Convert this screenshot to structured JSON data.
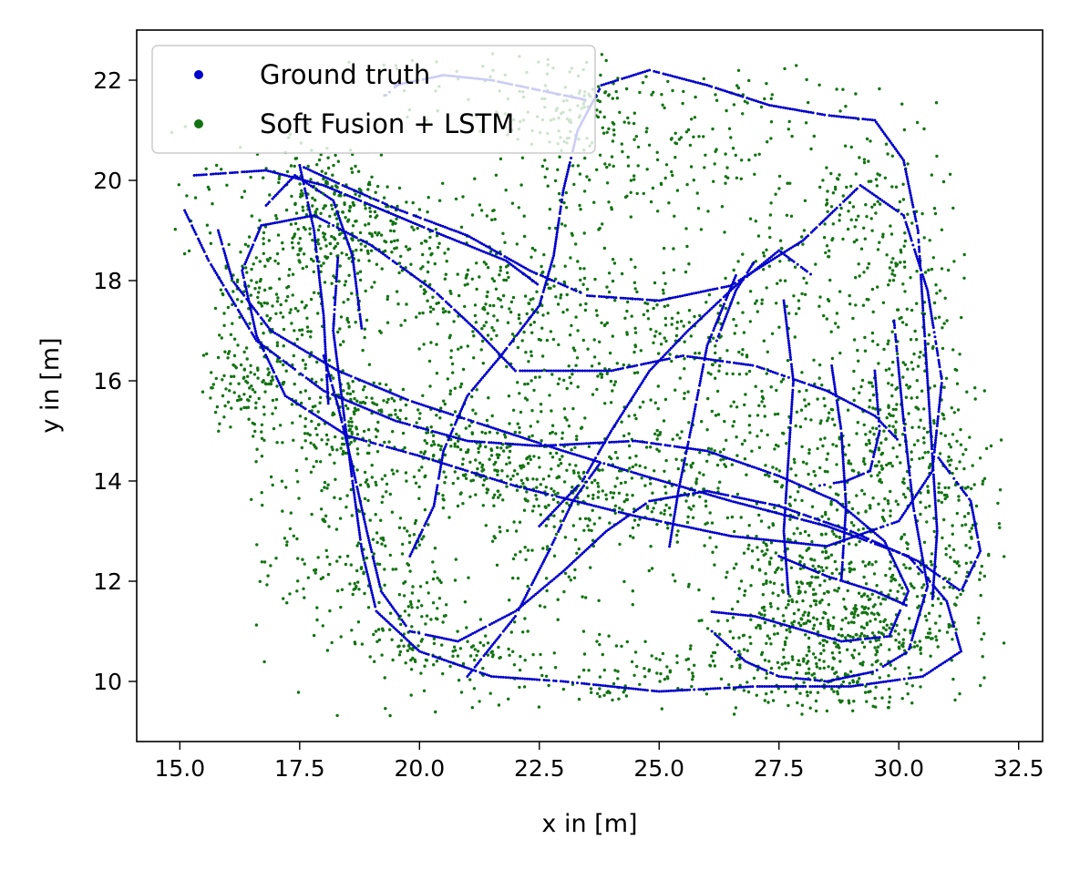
{
  "chart_data": {
    "type": "scatter",
    "title": "",
    "xlabel": "x in [m]",
    "ylabel": "y in [m]",
    "xlim": [
      14.1,
      33.0
    ],
    "ylim": [
      8.8,
      23.0
    ],
    "xticks": [
      15.0,
      17.5,
      20.0,
      22.5,
      25.0,
      27.5,
      30.0,
      32.5
    ],
    "xtick_labels": [
      "15.0",
      "17.5",
      "20.0",
      "22.5",
      "25.0",
      "27.5",
      "30.0",
      "32.5"
    ],
    "yticks": [
      10,
      12,
      14,
      16,
      18,
      20,
      22
    ],
    "ytick_labels": [
      "10",
      "12",
      "14",
      "16",
      "18",
      "20",
      "22"
    ],
    "grid": false,
    "legend": "top-left",
    "series": [
      {
        "name": "Ground truth",
        "color": "#0000cc",
        "polylines": [
          [
            [
              17.5,
              20.3
            ],
            [
              18.4,
              19.9
            ],
            [
              19.6,
              19.4
            ],
            [
              21.0,
              18.9
            ],
            [
              22.3,
              18.2
            ],
            [
              23.5,
              17.7
            ],
            [
              25.0,
              17.6
            ],
            [
              26.5,
              17.9
            ],
            [
              28.0,
              18.8
            ],
            [
              29.2,
              19.9
            ],
            [
              30.1,
              19.3
            ],
            [
              30.6,
              17.8
            ],
            [
              30.9,
              16.0
            ],
            [
              30.7,
              14.2
            ],
            [
              30.0,
              13.2
            ],
            [
              28.5,
              12.7
            ],
            [
              26.5,
              12.9
            ],
            [
              24.5,
              13.3
            ],
            [
              22.0,
              13.9
            ],
            [
              20.0,
              14.5
            ],
            [
              18.5,
              14.9
            ],
            [
              17.2,
              15.7
            ],
            [
              16.6,
              16.9
            ],
            [
              16.3,
              18.2
            ],
            [
              16.7,
              19.1
            ],
            [
              17.8,
              19.3
            ],
            [
              19.0,
              18.7
            ],
            [
              20.3,
              17.8
            ],
            [
              21.2,
              17.0
            ],
            [
              22.0,
              16.2
            ],
            [
              24.0,
              16.2
            ],
            [
              25.5,
              16.5
            ],
            [
              27.0,
              16.3
            ],
            [
              28.5,
              15.8
            ],
            [
              29.5,
              15.3
            ],
            [
              30.0,
              14.8
            ]
          ],
          [
            [
              15.3,
              20.1
            ],
            [
              16.8,
              20.2
            ],
            [
              18.0,
              19.9
            ],
            [
              19.5,
              19.3
            ],
            [
              20.5,
              18.9
            ],
            [
              21.8,
              18.4
            ],
            [
              22.5,
              17.9
            ]
          ],
          [
            [
              15.1,
              19.4
            ],
            [
              15.6,
              18.4
            ],
            [
              16.6,
              16.8
            ],
            [
              18.0,
              15.8
            ],
            [
              19.5,
              15.2
            ],
            [
              21.0,
              14.8
            ],
            [
              22.5,
              14.7
            ],
            [
              24.5,
              14.8
            ],
            [
              26.0,
              14.6
            ],
            [
              27.5,
              14.1
            ],
            [
              28.7,
              13.6
            ],
            [
              29.7,
              12.8
            ],
            [
              30.2,
              11.8
            ],
            [
              29.8,
              10.9
            ],
            [
              28.8,
              10.8
            ],
            [
              27.0,
              11.3
            ],
            [
              26.0,
              11.4
            ]
          ],
          [
            [
              15.8,
              19.0
            ],
            [
              16.1,
              18.0
            ],
            [
              16.9,
              17.0
            ],
            [
              18.3,
              16.2
            ],
            [
              19.8,
              15.6
            ],
            [
              21.4,
              15.1
            ],
            [
              23.0,
              14.6
            ],
            [
              24.7,
              14.1
            ],
            [
              26.5,
              13.6
            ],
            [
              28.5,
              13.1
            ],
            [
              30.2,
              12.5
            ],
            [
              31.0,
              11.6
            ],
            [
              31.3,
              10.6
            ],
            [
              30.5,
              10.1
            ],
            [
              29.0,
              9.9
            ],
            [
              27.0,
              9.9
            ],
            [
              25.0,
              9.8
            ],
            [
              23.0,
              10.0
            ],
            [
              21.5,
              10.1
            ],
            [
              20.0,
              10.6
            ],
            [
              19.1,
              11.4
            ],
            [
              18.8,
              12.6
            ],
            [
              18.6,
              14.0
            ],
            [
              18.4,
              15.5
            ],
            [
              18.2,
              17.0
            ],
            [
              18.3,
              18.5
            ]
          ],
          [
            [
              16.8,
              19.5
            ],
            [
              17.4,
              20.1
            ],
            [
              18.2,
              19.6
            ],
            [
              18.6,
              18.5
            ],
            [
              18.8,
              17.0
            ]
          ],
          [
            [
              17.5,
              20.3
            ],
            [
              17.8,
              19.0
            ],
            [
              18.0,
              17.3
            ],
            [
              18.1,
              15.5
            ]
          ],
          [
            [
              18.0,
              16.5
            ],
            [
              18.3,
              15.5
            ],
            [
              18.6,
              14.3
            ],
            [
              18.9,
              13.0
            ],
            [
              19.2,
              11.8
            ],
            [
              19.8,
              11.0
            ],
            [
              20.8,
              10.8
            ],
            [
              22.0,
              11.4
            ],
            [
              23.0,
              12.2
            ],
            [
              23.9,
              13.0
            ],
            [
              24.8,
              13.6
            ],
            [
              26.0,
              13.8
            ],
            [
              27.5,
              13.5
            ],
            [
              29.0,
              13.0
            ],
            [
              30.4,
              12.4
            ],
            [
              31.3,
              11.8
            ],
            [
              31.7,
              12.6
            ],
            [
              31.5,
              13.6
            ],
            [
              30.8,
              14.5
            ]
          ],
          [
            [
              19.8,
              12.5
            ],
            [
              20.3,
              13.5
            ],
            [
              20.5,
              14.6
            ],
            [
              21.0,
              15.7
            ],
            [
              21.7,
              16.5
            ],
            [
              22.5,
              17.5
            ],
            [
              22.8,
              18.5
            ],
            [
              23.0,
              19.8
            ],
            [
              23.3,
              21.0
            ],
            [
              23.8,
              21.9
            ],
            [
              24.8,
              22.2
            ],
            [
              26.0,
              21.9
            ],
            [
              27.3,
              21.5
            ],
            [
              28.5,
              21.3
            ],
            [
              29.5,
              21.2
            ],
            [
              30.1,
              20.4
            ],
            [
              30.4,
              19.0
            ],
            [
              30.5,
              17.5
            ],
            [
              30.6,
              16.0
            ],
            [
              30.7,
              14.5
            ],
            [
              30.8,
              13.0
            ],
            [
              30.7,
              11.6
            ]
          ],
          [
            [
              19.5,
              21.9
            ],
            [
              20.5,
              22.1
            ],
            [
              21.5,
              22.0
            ],
            [
              22.5,
              21.8
            ],
            [
              23.5,
              21.6
            ]
          ],
          [
            [
              22.5,
              13.1
            ],
            [
              23.4,
              14.0
            ],
            [
              24.0,
              15.0
            ],
            [
              24.8,
              16.2
            ],
            [
              25.6,
              17.0
            ],
            [
              26.6,
              17.9
            ],
            [
              27.5,
              18.6
            ],
            [
              28.2,
              18.1
            ]
          ],
          [
            [
              21.0,
              10.1
            ],
            [
              22.0,
              11.3
            ],
            [
              22.7,
              12.6
            ],
            [
              23.2,
              13.6
            ],
            [
              23.8,
              14.4
            ]
          ],
          [
            [
              26.2,
              16.8
            ],
            [
              26.6,
              17.8
            ],
            [
              27.0,
              18.4
            ]
          ],
          [
            [
              26.6,
              18.1
            ],
            [
              26.0,
              16.7
            ],
            [
              25.7,
              15.2
            ],
            [
              25.4,
              13.8
            ],
            [
              25.2,
              12.6
            ]
          ],
          [
            [
              27.6,
              17.6
            ],
            [
              27.8,
              16.0
            ],
            [
              27.7,
              14.5
            ],
            [
              27.6,
              13.0
            ],
            [
              27.7,
              11.7
            ]
          ],
          [
            [
              28.6,
              16.3
            ],
            [
              28.8,
              15.0
            ],
            [
              28.9,
              13.5
            ],
            [
              28.8,
              12.0
            ]
          ],
          [
            [
              29.5,
              16.2
            ],
            [
              29.6,
              15.0
            ],
            [
              29.4,
              14.2
            ],
            [
              28.9,
              14.0
            ],
            [
              28.3,
              13.9
            ]
          ],
          [
            [
              29.9,
              17.2
            ],
            [
              30.1,
              15.2
            ],
            [
              30.3,
              13.5
            ],
            [
              30.6,
              11.9
            ],
            [
              30.2,
              10.6
            ]
          ],
          [
            [
              26.1,
              11.0
            ],
            [
              26.8,
              10.4
            ],
            [
              27.5,
              10.1
            ],
            [
              28.5,
              10.0
            ],
            [
              29.5,
              10.2
            ],
            [
              30.2,
              10.6
            ]
          ],
          [
            [
              27.5,
              12.5
            ],
            [
              28.5,
              12.1
            ],
            [
              29.5,
              11.8
            ],
            [
              30.2,
              11.5
            ]
          ],
          [
            [
              19.3,
              21.7
            ],
            [
              19.6,
              21.95
            ]
          ],
          [
            [
              25.7,
              11.6
            ],
            [
              25.75,
              11.65
            ]
          ]
        ]
      },
      {
        "name": "Soft Fusion + LSTM",
        "color": "#127312",
        "count": 4200,
        "clusters": [
          [
            18.3,
            18.9,
            1.1,
            0.9,
            0.06
          ],
          [
            17.0,
            17.2,
            0.9,
            1.5,
            0.06
          ],
          [
            16.5,
            15.8,
            0.8,
            0.9,
            0.04
          ],
          [
            18.5,
            15.0,
            1.2,
            1.1,
            0.06
          ],
          [
            21.5,
            14.4,
            1.4,
            0.7,
            0.06
          ],
          [
            23.5,
            13.7,
            1.6,
            0.9,
            0.06
          ],
          [
            27.7,
            12.2,
            1.1,
            1.0,
            0.07
          ],
          [
            28.8,
            11.0,
            1.1,
            0.8,
            0.06
          ],
          [
            29.5,
            14.3,
            0.9,
            1.3,
            0.05
          ],
          [
            30.2,
            16.8,
            0.8,
            2.2,
            0.06
          ],
          [
            29.0,
            19.0,
            1.3,
            1.6,
            0.05
          ],
          [
            26.0,
            20.5,
            2.2,
            1.1,
            0.04
          ],
          [
            23.0,
            21.0,
            1.5,
            1.0,
            0.04
          ],
          [
            25.0,
            17.0,
            2.2,
            1.2,
            0.05
          ],
          [
            22.0,
            17.5,
            1.3,
            1.0,
            0.04
          ],
          [
            19.3,
            12.0,
            1.3,
            1.8,
            0.05
          ],
          [
            20.5,
            10.6,
            1.2,
            0.6,
            0.03
          ],
          [
            24.5,
            10.2,
            2.0,
            0.5,
            0.04
          ],
          [
            27.5,
            10.4,
            1.5,
            0.5,
            0.03
          ],
          [
            30.3,
            11.5,
            1.0,
            1.0,
            0.04
          ],
          [
            31.3,
            13.5,
            0.7,
            1.3,
            0.02
          ],
          [
            24.0,
            19.5,
            2.5,
            1.5,
            0.04
          ],
          [
            26.5,
            15.0,
            2.0,
            1.3,
            0.05
          ],
          [
            22.5,
            15.5,
            1.8,
            1.2,
            0.04
          ],
          [
            20.0,
            18.0,
            1.8,
            1.2,
            0.04
          ],
          [
            18.0,
            20.1,
            0.8,
            0.5,
            0.02
          ],
          [
            23.7,
            21.7,
            0.9,
            0.6,
            0.02
          ],
          [
            28.5,
            9.8,
            1.2,
            0.4,
            0.02
          ],
          [
            17.5,
            12.5,
            1.0,
            1.5,
            0.02
          ]
        ]
      }
    ]
  }
}
